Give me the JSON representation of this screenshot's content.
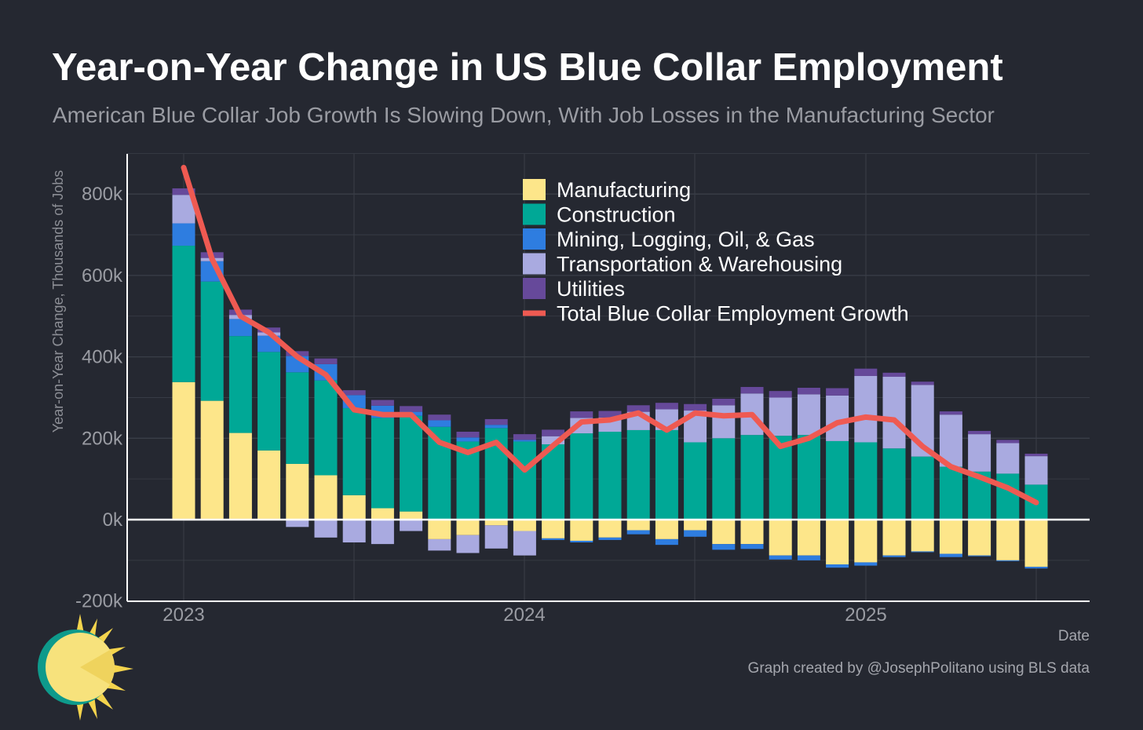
{
  "title": "Year-on-Year Change in US Blue Collar Employment",
  "subtitle": "American Blue Collar Job Growth Is Slowing Down, With Job Losses in the Manufacturing Sector",
  "footer": "Graph created by @JosephPolitano using BLS data",
  "colors": {
    "background": "#252831",
    "manufacturing": "#fde68a",
    "construction": "#00a896",
    "mining": "#2e7de0",
    "transportation": "#a9aae0",
    "utilities": "#66499a",
    "total": "#ef5a52"
  },
  "chart_data": {
    "type": "bar",
    "stacked": true,
    "xlabel": "Date",
    "ylabel": "Year-on-Year Change, Thousands of Jobs",
    "ylim": [
      -200,
      900
    ],
    "yticks": [
      -200,
      0,
      200,
      400,
      600,
      800
    ],
    "ytick_labels": [
      "-200k",
      "0k",
      "200k",
      "400k",
      "600k",
      "800k"
    ],
    "xticks": [
      "2023",
      "2024",
      "2025"
    ],
    "grid": true,
    "legend_position": "top-center",
    "categories": [
      "2023-01",
      "2023-02",
      "2023-03",
      "2023-04",
      "2023-05",
      "2023-06",
      "2023-07",
      "2023-08",
      "2023-09",
      "2023-10",
      "2023-11",
      "2023-12",
      "2024-01",
      "2024-02",
      "2024-03",
      "2024-04",
      "2024-05",
      "2024-06",
      "2024-07",
      "2024-08",
      "2024-09",
      "2024-10",
      "2024-11",
      "2024-12",
      "2025-01",
      "2025-02",
      "2025-03",
      "2025-04",
      "2025-05",
      "2025-06",
      "2025-07"
    ],
    "series": [
      {
        "name": "Manufacturing",
        "key": "manufacturing",
        "values": [
          338,
          292,
          213,
          170,
          137,
          109,
          60,
          28,
          20,
          -48,
          -38,
          -14,
          -28,
          -46,
          -52,
          -44,
          -26,
          -48,
          -26,
          -60,
          -60,
          -88,
          -88,
          -110,
          -105,
          -88,
          -78,
          -84,
          -88,
          -100,
          -116
        ]
      },
      {
        "name": "Construction",
        "key": "construction",
        "values": [
          335,
          293,
          238,
          242,
          225,
          233,
          214,
          222,
          235,
          228,
          192,
          225,
          192,
          185,
          212,
          216,
          220,
          220,
          190,
          200,
          208,
          206,
          208,
          193,
          190,
          175,
          155,
          130,
          118,
          113,
          86
        ]
      },
      {
        "name": "Mining, Logging, Oil, & Gas",
        "key": "mining",
        "values": [
          55,
          50,
          42,
          40,
          40,
          40,
          32,
          30,
          10,
          16,
          10,
          8,
          4,
          -4,
          -4,
          -6,
          -10,
          -14,
          -16,
          -14,
          -12,
          -10,
          -12,
          -8,
          -8,
          -4,
          -2,
          -8,
          -2,
          -2,
          -4
        ]
      },
      {
        "name": "Transportation & Warehousing",
        "key": "transportation",
        "values": [
          70,
          8,
          10,
          8,
          -18,
          -44,
          -56,
          -60,
          -28,
          -28,
          -44,
          -57,
          -60,
          20,
          38,
          35,
          45,
          51,
          78,
          81,
          102,
          94,
          100,
          112,
          163,
          176,
          176,
          128,
          92,
          75,
          70
        ]
      },
      {
        "name": "Utilities",
        "key": "utilities",
        "values": [
          16,
          14,
          13,
          12,
          12,
          14,
          12,
          14,
          14,
          14,
          14,
          14,
          14,
          16,
          16,
          16,
          16,
          16,
          16,
          16,
          16,
          16,
          16,
          18,
          18,
          10,
          8,
          8,
          8,
          8,
          6
        ]
      }
    ],
    "line": {
      "name": "Total Blue Collar Employment Growth",
      "values": [
        865,
        640,
        500,
        460,
        400,
        356,
        270,
        258,
        258,
        190,
        165,
        190,
        122,
        182,
        240,
        245,
        262,
        220,
        262,
        255,
        258,
        180,
        200,
        238,
        252,
        245,
        180,
        130,
        105,
        78,
        42
      ]
    }
  }
}
